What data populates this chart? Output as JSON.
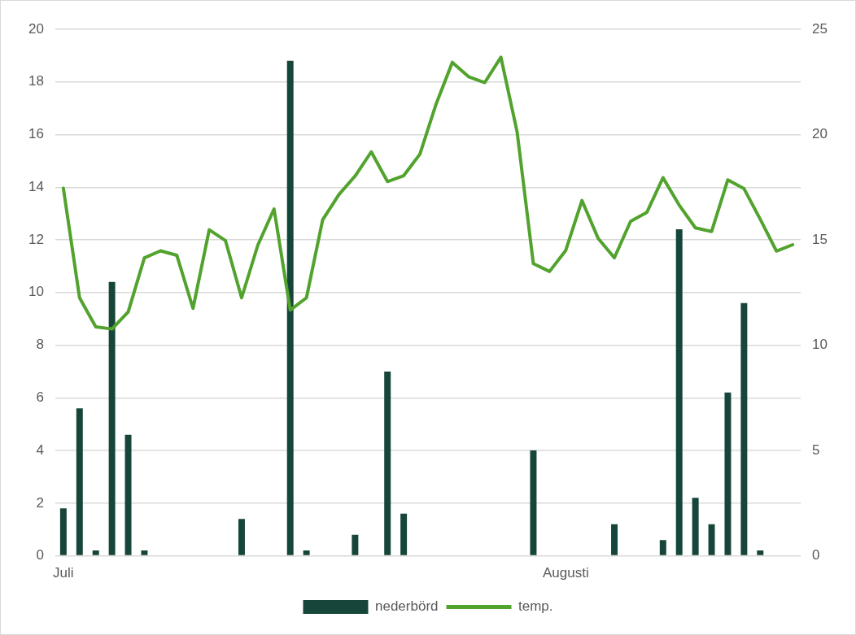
{
  "chart_data": {
    "type": "bar",
    "categories": [
      "Juli",
      null,
      null,
      null,
      null,
      null,
      null,
      null,
      null,
      null,
      null,
      null,
      null,
      null,
      null,
      null,
      null,
      null,
      null,
      null,
      null,
      null,
      null,
      null,
      null,
      null,
      null,
      null,
      null,
      null,
      null,
      "Augusti",
      null,
      null,
      null,
      null,
      null,
      null,
      null,
      null,
      null,
      null,
      null,
      null,
      null,
      null
    ],
    "series": [
      {
        "name": "nederbörd",
        "color": "#16453a",
        "values": [
          1.8,
          5.6,
          0.2,
          10.4,
          4.6,
          0.2,
          0,
          0,
          0,
          0,
          0,
          1.4,
          0,
          0,
          18.8,
          0.2,
          0,
          0,
          0.8,
          0,
          7.0,
          1.6,
          0,
          0,
          0,
          0,
          0,
          0,
          0,
          4.0,
          0,
          0,
          0,
          0,
          1.2,
          0,
          0,
          0.6,
          12.4,
          2.2,
          1.2,
          6.2,
          9.6,
          0.2,
          0,
          0
        ]
      },
      {
        "name": "temp.",
        "type": "line",
        "axis": "y2",
        "color": "#52a32e",
        "values": [
          17.45,
          12.25,
          10.87,
          10.77,
          11.58,
          14.15,
          14.48,
          14.27,
          11.75,
          15.48,
          14.97,
          12.25,
          14.75,
          16.47,
          11.67,
          12.25,
          15.95,
          17.15,
          18.03,
          19.18,
          17.77,
          18.05,
          19.07,
          21.45,
          23.43,
          22.75,
          22.47,
          23.67,
          20.12,
          13.87,
          13.5,
          14.5,
          16.87,
          15.07,
          14.15,
          15.88,
          16.3,
          17.95,
          16.65,
          15.57,
          15.4,
          17.85,
          17.43,
          15.98,
          14.47,
          14.77
        ]
      }
    ],
    "ylim": [
      0,
      20
    ],
    "yticks": [
      0,
      2,
      4,
      6,
      8,
      10,
      12,
      14,
      16,
      18,
      20
    ],
    "y2lim": [
      0,
      25
    ],
    "y2ticks": [
      0,
      5,
      10,
      15,
      20,
      25
    ],
    "grid": "y",
    "legend": "bottom"
  }
}
